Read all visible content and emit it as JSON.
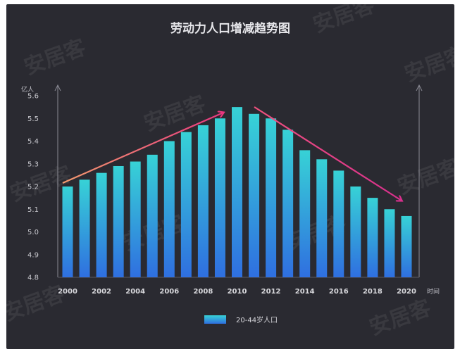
{
  "chart_data": {
    "type": "bar",
    "title": "劳动力人口增减趋势图",
    "ylabel": "亿人",
    "xlabel": "时间",
    "ylim": [
      4.8,
      5.6
    ],
    "yticks": [
      "4.8",
      "4.9",
      "5.0",
      "5.1",
      "5.2",
      "5.3",
      "5.4",
      "5.5",
      "5.6"
    ],
    "categories": [
      "2000",
      "2001",
      "2002",
      "2003",
      "2004",
      "2005",
      "2006",
      "2007",
      "2008",
      "2009",
      "2010",
      "2011",
      "2012",
      "2013",
      "2014",
      "2015",
      "2016",
      "2017",
      "2018",
      "2019",
      "2020"
    ],
    "xtick_labels": [
      "2000",
      "2002",
      "2004",
      "2006",
      "2008",
      "2010",
      "2012",
      "2014",
      "2016",
      "2018",
      "2020"
    ],
    "series": [
      {
        "name": "20-44岁人口",
        "values": [
          5.2,
          5.23,
          5.26,
          5.29,
          5.31,
          5.34,
          5.4,
          5.44,
          5.47,
          5.5,
          5.55,
          5.52,
          5.5,
          5.45,
          5.36,
          5.32,
          5.27,
          5.2,
          5.15,
          5.1,
          5.07
        ]
      }
    ],
    "grid": false,
    "legend_position": "bottom-center",
    "bar_color_top": "#37d2d6",
    "bar_color_bottom": "#2f6fe0",
    "trend_arrows": true,
    "watermark": "安居客"
  }
}
